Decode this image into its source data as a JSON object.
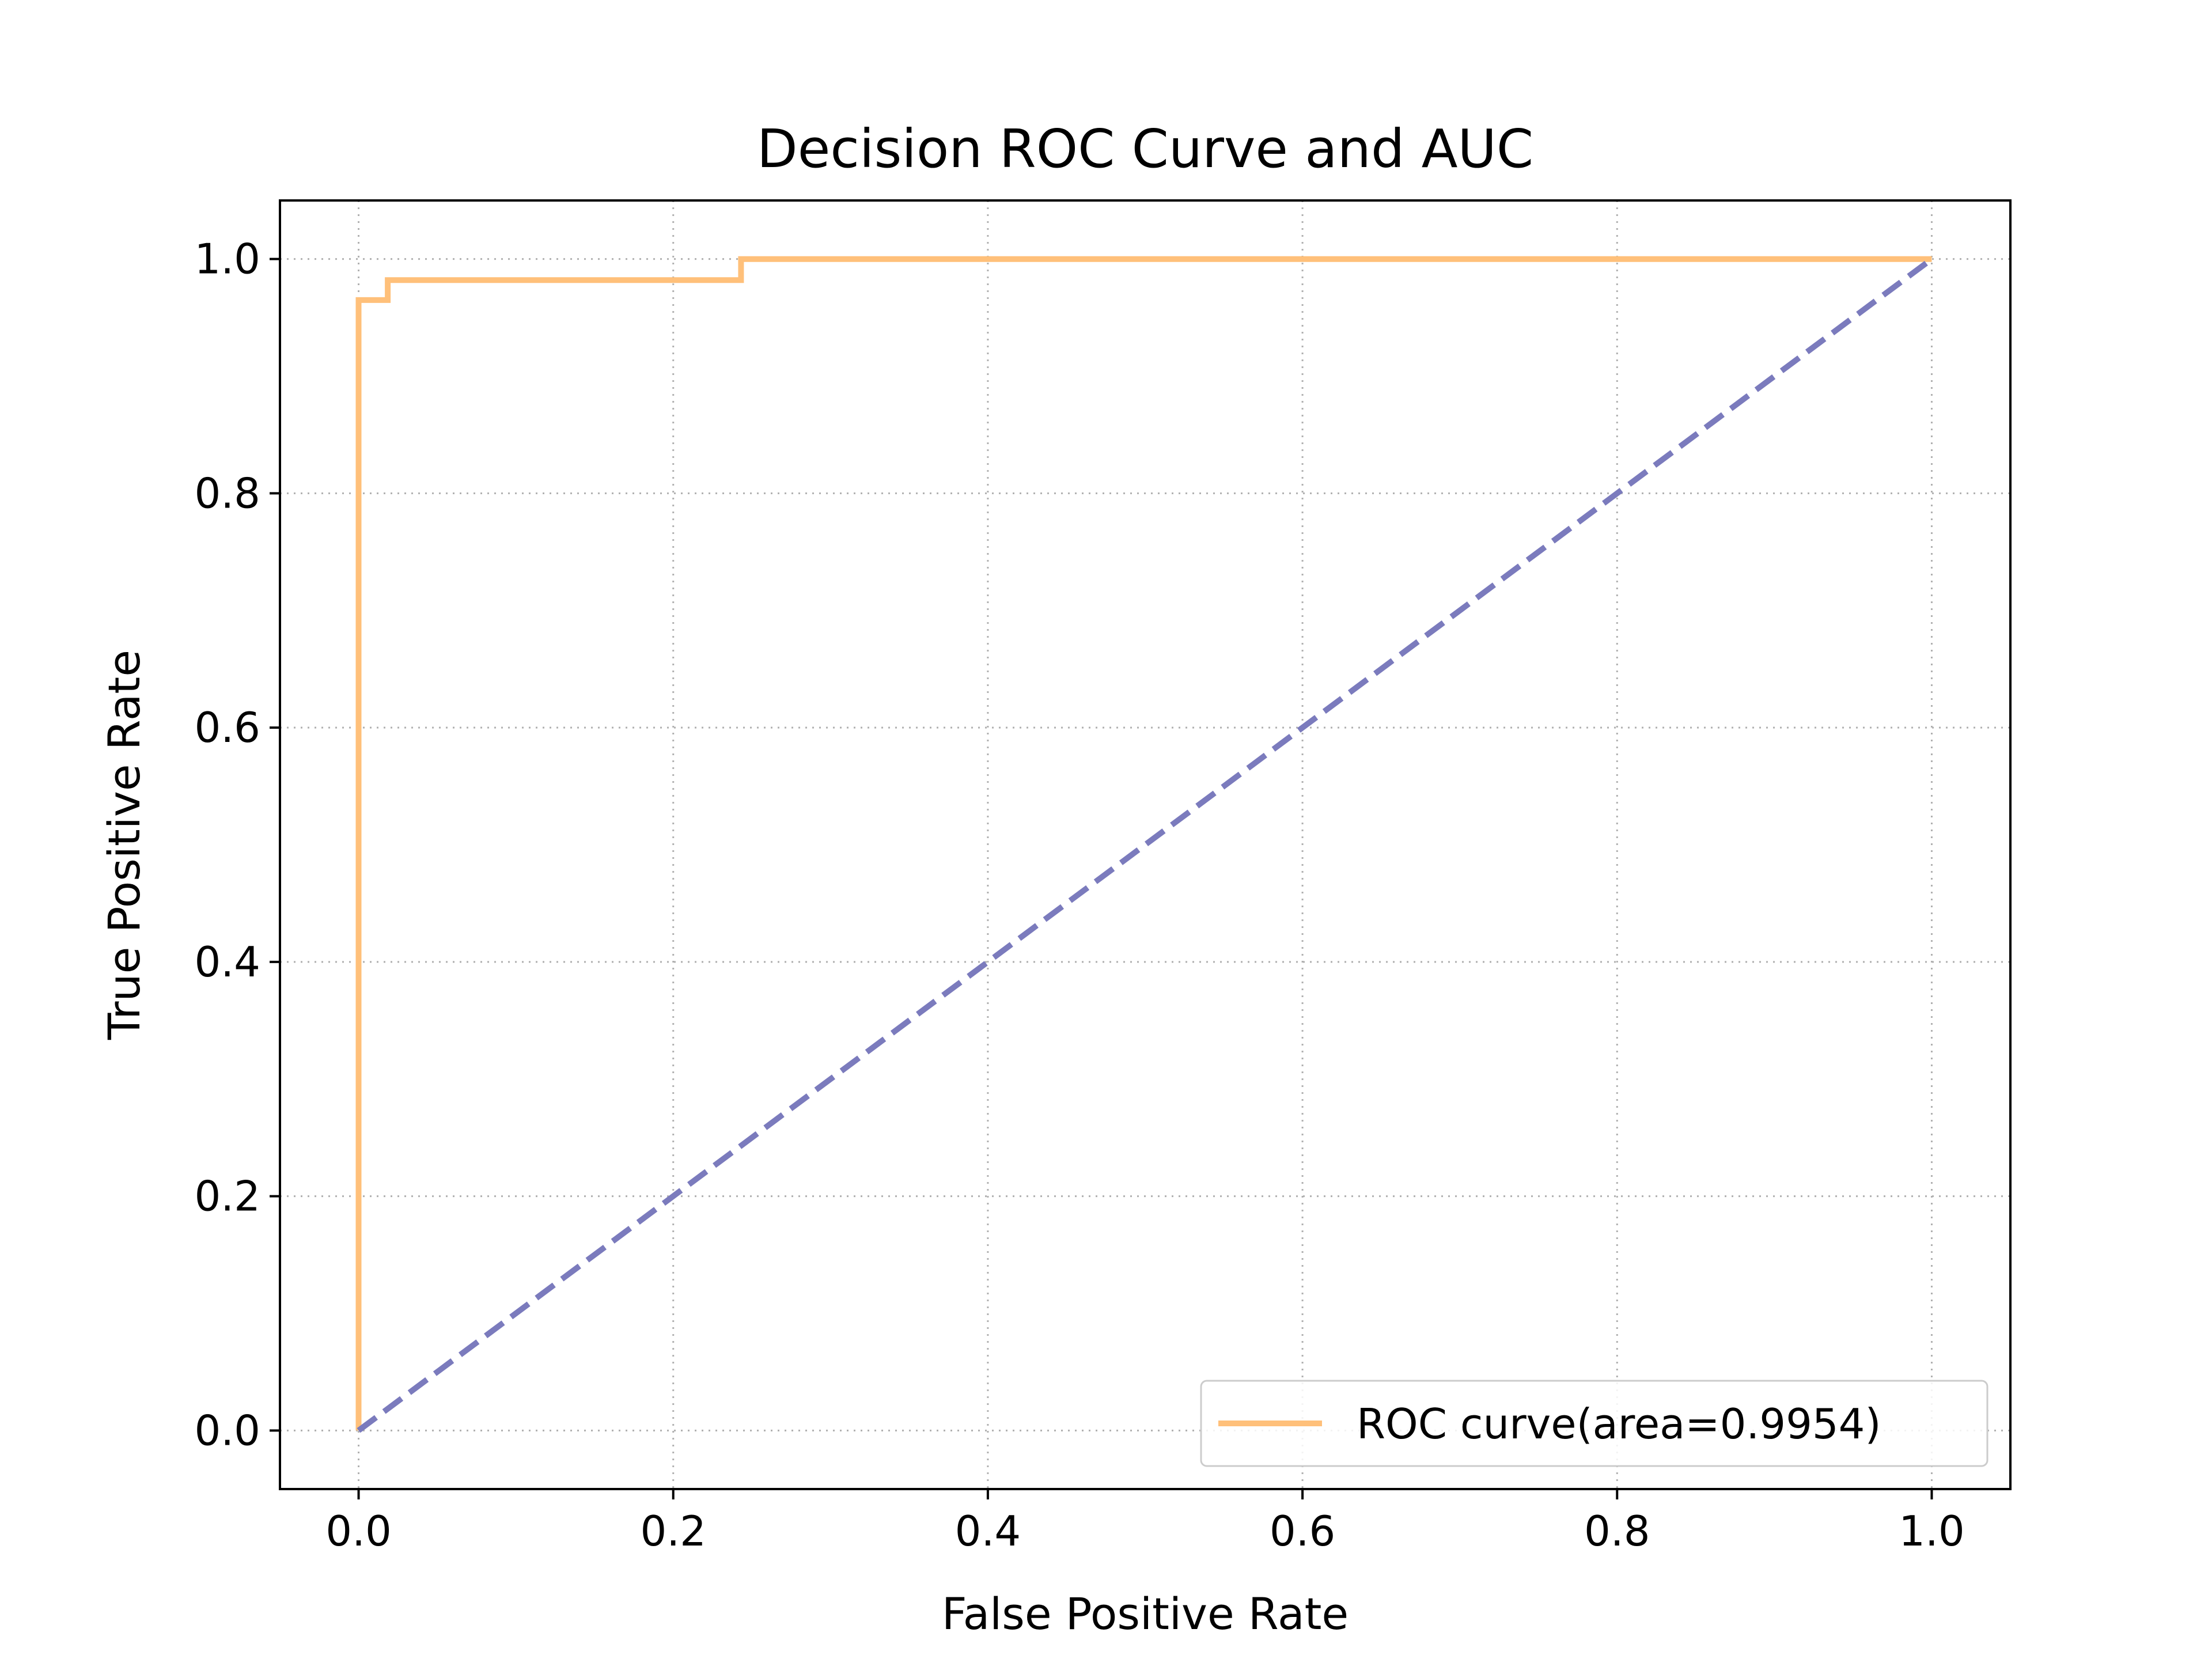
{
  "chart_data": {
    "type": "line",
    "title": "Decision ROC Curve and AUC",
    "xlabel": "False Positive Rate",
    "ylabel": "True Positive Rate",
    "xlim": [
      -0.05,
      1.05
    ],
    "ylim": [
      -0.05,
      1.05
    ],
    "xticks": [
      0.0,
      0.2,
      0.4,
      0.6,
      0.8,
      1.0
    ],
    "yticks": [
      0.0,
      0.2,
      0.4,
      0.6,
      0.8,
      1.0
    ],
    "xtick_labels": [
      "0.0",
      "0.2",
      "0.4",
      "0.6",
      "0.8",
      "1.0"
    ],
    "ytick_labels": [
      "0.0",
      "0.2",
      "0.4",
      "0.6",
      "0.8",
      "1.0"
    ],
    "grid": true,
    "legend_position": "lower-right",
    "series": [
      {
        "name": "ROC curve(area=0.9954)",
        "color": "#ffc07a",
        "style": "solid-step",
        "x": [
          0.0,
          0.0,
          0.0,
          0.0185,
          0.0185,
          0.2431,
          0.2431,
          1.0
        ],
        "y": [
          0.0,
          0.965,
          0.965,
          0.965,
          0.982,
          0.982,
          1.0,
          1.0
        ]
      },
      {
        "name": "",
        "color": "#7b7bbd",
        "style": "dashed",
        "x": [
          0.0,
          1.0
        ],
        "y": [
          0.0,
          1.0
        ]
      }
    ]
  }
}
